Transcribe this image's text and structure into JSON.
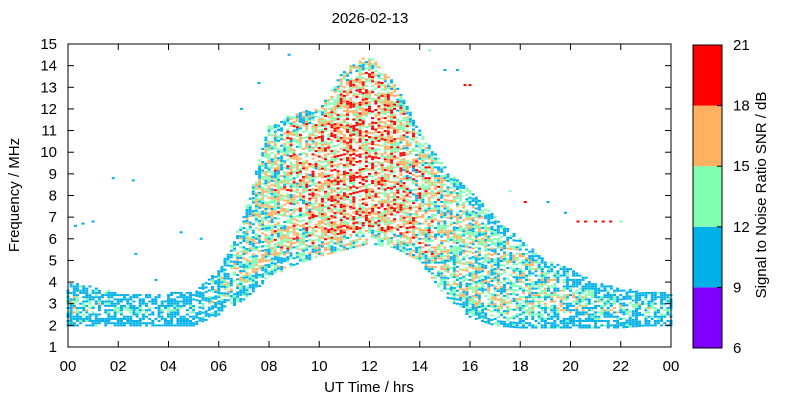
{
  "chart_data": {
    "type": "heatmap",
    "title": "2026-02-13",
    "xlabel": "UT Time / hrs",
    "ylabel": "Frequency / MHz",
    "xlim": [
      0,
      24
    ],
    "ylim": [
      1,
      15
    ],
    "x_ticks": [
      "00",
      "02",
      "04",
      "06",
      "08",
      "10",
      "12",
      "14",
      "16",
      "18",
      "20",
      "22",
      "00"
    ],
    "y_ticks": [
      "1",
      "2",
      "3",
      "4",
      "5",
      "6",
      "7",
      "8",
      "9",
      "10",
      "11",
      "12",
      "13",
      "14",
      "15"
    ],
    "grid": false,
    "colorbar": {
      "label": "Signal to Noise Ratio SNR / dB",
      "ticks": [
        "6",
        "9",
        "12",
        "15",
        "18",
        "21"
      ],
      "bands": [
        {
          "from": 6,
          "to": 9,
          "color": "#8000ff"
        },
        {
          "from": 9,
          "to": 12,
          "color": "#00b0e8"
        },
        {
          "from": 12,
          "to": 15,
          "color": "#80ffb0"
        },
        {
          "from": 15,
          "to": 18,
          "color": "#ffb060"
        },
        {
          "from": 18,
          "to": 21,
          "color": "#ff0000"
        }
      ]
    },
    "envelope": {
      "hours": [
        0,
        1,
        2,
        3,
        4,
        5,
        6,
        7,
        8,
        9,
        10,
        11,
        12,
        13,
        14,
        15,
        16,
        17,
        18,
        19,
        20,
        21,
        22,
        23,
        24
      ],
      "fmin_mhz": [
        2.0,
        2.0,
        2.0,
        2.0,
        2.0,
        2.0,
        2.5,
        3.2,
        4.2,
        4.8,
        5.2,
        5.5,
        5.8,
        5.6,
        5.0,
        3.4,
        2.4,
        2.0,
        1.9,
        1.9,
        1.9,
        1.9,
        1.9,
        2.0,
        2.0
      ],
      "fmax_mhz": [
        4.0,
        3.8,
        3.5,
        3.4,
        3.5,
        3.6,
        4.5,
        7.0,
        11.2,
        11.8,
        12.0,
        13.8,
        14.5,
        13.2,
        11.0,
        9.3,
        8.2,
        7.0,
        6.0,
        5.0,
        4.6,
        4.0,
        3.7,
        3.6,
        3.5
      ],
      "mean_snr_db": [
        12,
        12,
        11,
        11,
        11,
        11,
        12,
        13,
        14,
        15,
        16,
        17,
        17,
        16,
        15,
        14,
        14,
        13,
        13,
        13,
        12,
        12,
        12,
        12,
        12
      ]
    },
    "isolated_points": [
      {
        "x": 0.3,
        "y": 6.6,
        "snr": 10
      },
      {
        "x": 0.6,
        "y": 6.7,
        "snr": 10
      },
      {
        "x": 1.0,
        "y": 6.8,
        "snr": 10
      },
      {
        "x": 1.8,
        "y": 8.8,
        "snr": 10
      },
      {
        "x": 2.6,
        "y": 8.7,
        "snr": 10
      },
      {
        "x": 2.7,
        "y": 5.3,
        "snr": 10
      },
      {
        "x": 3.5,
        "y": 4.1,
        "snr": 10
      },
      {
        "x": 4.5,
        "y": 6.3,
        "snr": 10
      },
      {
        "x": 5.3,
        "y": 6.0,
        "snr": 10
      },
      {
        "x": 8.8,
        "y": 14.5,
        "snr": 10
      },
      {
        "x": 7.6,
        "y": 13.2,
        "snr": 10
      },
      {
        "x": 14.4,
        "y": 14.7,
        "snr": 13
      },
      {
        "x": 15.0,
        "y": 13.8,
        "snr": 10
      },
      {
        "x": 15.5,
        "y": 13.8,
        "snr": 10
      },
      {
        "x": 15.8,
        "y": 13.1,
        "snr": 20
      },
      {
        "x": 16.0,
        "y": 13.1,
        "snr": 20
      },
      {
        "x": 17.6,
        "y": 8.2,
        "snr": 13
      },
      {
        "x": 18.2,
        "y": 7.7,
        "snr": 20
      },
      {
        "x": 19.1,
        "y": 7.7,
        "snr": 10
      },
      {
        "x": 19.8,
        "y": 7.2,
        "snr": 10
      },
      {
        "x": 20.3,
        "y": 6.8,
        "snr": 20
      },
      {
        "x": 20.6,
        "y": 6.8,
        "snr": 20
      },
      {
        "x": 21.0,
        "y": 6.8,
        "snr": 20
      },
      {
        "x": 21.3,
        "y": 6.8,
        "snr": 20
      },
      {
        "x": 21.6,
        "y": 6.8,
        "snr": 20
      },
      {
        "x": 22.0,
        "y": 6.8,
        "snr": 13
      },
      {
        "x": 6.9,
        "y": 12.0,
        "snr": 10
      }
    ]
  }
}
